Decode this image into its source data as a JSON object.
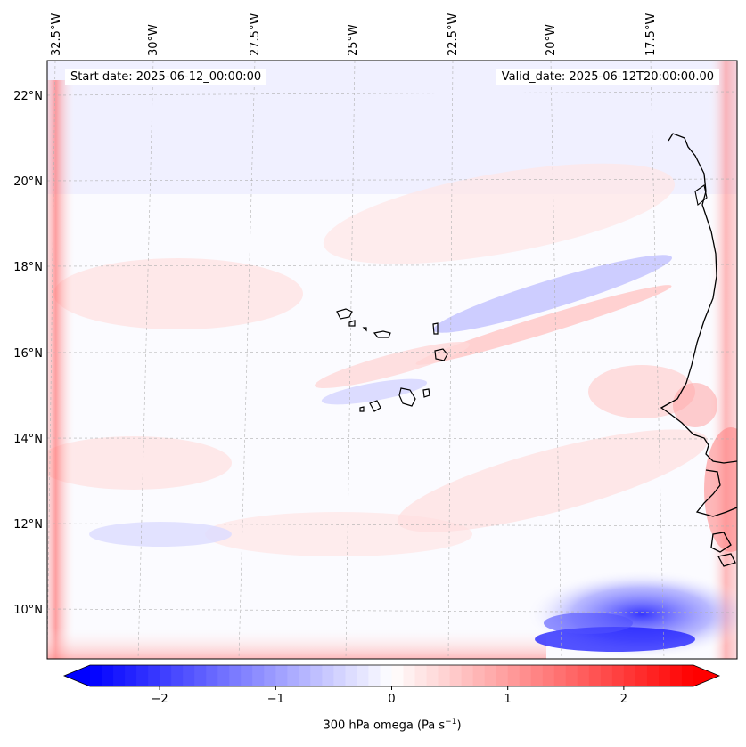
{
  "map": {
    "start_date_label": "Start date: 2025-06-12_00:00:00",
    "valid_date_label": "Valid_date: 2025-06-12T20:00:00.00",
    "lon_labels": [
      "32.5°W",
      "30°W",
      "27.5°W",
      "25°W",
      "22.5°W",
      "20°W",
      "17.5°W"
    ],
    "lat_labels": [
      "22°N",
      "20°N",
      "18°N",
      "16°N",
      "14°N",
      "12°N",
      "10°N"
    ],
    "region": "Cape Verde / West African coast",
    "field_colors": {
      "negative": "#0000ff",
      "neutral": "#ffffff",
      "positive": "#ff0000"
    }
  },
  "colorbar": {
    "title_prefix": "300 hPa omega (Pa s",
    "title_exp": "−1",
    "title_suffix": ")",
    "ticks": [
      "−2",
      "−1",
      "0",
      "1",
      "2"
    ],
    "range": [
      -2.6,
      2.6
    ],
    "steps": 52
  }
}
